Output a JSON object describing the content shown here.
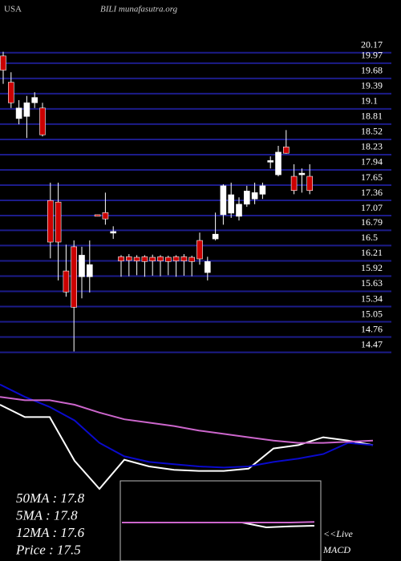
{
  "chart_data": {
    "type": "candlestick",
    "title": "BILI munafasutra.org",
    "subtitle": "USA",
    "open": [
      19.97,
      19.47,
      18.78,
      18.82,
      19.08,
      18.98,
      17.22,
      17.19,
      15.88,
      16.34,
      15.77,
      15.77,
      16.95,
      16.99,
      16.6,
      16.15,
      16.15,
      16.14,
      16.15,
      16.14,
      16.15,
      16.14,
      16.15,
      16.15,
      16.14,
      16.46,
      15.85,
      16.49,
      16.95,
      16.98,
      16.92,
      17.15,
      17.25,
      17.34,
      17.95,
      17.71,
      18.24,
      17.68,
      17.71,
      17.68
    ],
    "high": [
      20.05,
      19.66,
      19.13,
      19.21,
      19.28,
      19.08,
      17.56,
      17.56,
      16.38,
      16.46,
      16.34,
      16.46,
      16.95,
      17.37,
      16.73,
      16.18,
      16.2,
      16.18,
      16.18,
      16.19,
      16.18,
      16.17,
      16.18,
      16.2,
      16.17,
      16.61,
      16.15,
      16.99,
      17.53,
      17.56,
      17.28,
      17.5,
      17.56,
      17.56,
      18.06,
      18.26,
      18.56,
      17.91,
      17.83,
      17.91
    ],
    "low": [
      19.44,
      18.98,
      18.67,
      18.41,
      18.98,
      18.44,
      16.12,
      15.7,
      15.39,
      14.35,
      15.36,
      15.47,
      16.92,
      16.76,
      16.49,
      15.77,
      15.78,
      15.8,
      15.77,
      15.79,
      15.78,
      15.8,
      15.77,
      15.79,
      15.78,
      16.0,
      15.7,
      16.46,
      16.76,
      16.89,
      16.84,
      17.1,
      17.15,
      17.25,
      17.83,
      17.68,
      18.11,
      17.34,
      17.37,
      17.34
    ],
    "close": [
      19.7,
      19.08,
      18.98,
      19.08,
      19.18,
      18.47,
      16.43,
      16.43,
      15.48,
      15.19,
      16.18,
      16.0,
      16.92,
      16.87,
      16.63,
      16.07,
      16.08,
      16.07,
      16.06,
      16.07,
      16.07,
      16.06,
      16.07,
      16.07,
      16.06,
      16.11,
      16.06,
      16.58,
      17.5,
      17.33,
      17.15,
      17.4,
      17.37,
      17.5,
      17.98,
      18.14,
      18.12,
      17.41,
      17.74,
      17.41
    ],
    "up_color": "#ffffff",
    "down_color": "#cc0000",
    "grid_color": "#1c1c8a",
    "ylim": [
      14.25,
      20.73
    ],
    "yticks": [
      20.17,
      19.97,
      19.68,
      19.39,
      19.1,
      18.81,
      18.52,
      18.23,
      17.94,
      17.65,
      17.36,
      17.07,
      16.79,
      16.5,
      16.21,
      15.92,
      15.63,
      15.34,
      15.05,
      14.76,
      14.47
    ],
    "grid": true,
    "indicators": {
      "ylim": [
        0,
        100
      ],
      "series": [
        {
          "color": "#ffffff",
          "values": [
            75,
            64,
            64,
            25,
            0,
            26,
            20,
            17,
            16,
            16,
            18,
            36,
            39,
            46,
            43,
            39
          ]
        },
        {
          "color": "#0a0acc",
          "values": [
            93,
            82,
            73,
            61,
            41,
            29,
            24,
            22,
            20,
            19,
            20,
            24,
            27,
            31,
            41,
            39
          ]
        },
        {
          "color": "#cc66cc",
          "values": [
            82,
            79,
            79,
            75,
            68,
            62,
            59,
            56,
            52,
            49,
            46,
            43,
            41,
            41,
            42,
            43
          ]
        }
      ],
      "labels": [
        "50MA : 17.8",
        "5MA : 17.8",
        "12MA : 17.6",
        "Price   : 17.5"
      ]
    },
    "macd": {
      "ylim": [
        -1,
        1
      ],
      "series": [
        {
          "color": "#ffffff",
          "values": [
            0,
            0,
            0,
            0,
            0,
            0,
            -0.15,
            -0.12,
            -0.1
          ]
        },
        {
          "color": "#cc66cc",
          "values": [
            0,
            0,
            0,
            0,
            0,
            0,
            0,
            0,
            0.02
          ]
        }
      ],
      "labels": [
        "<<Live",
        "MACD"
      ]
    }
  }
}
